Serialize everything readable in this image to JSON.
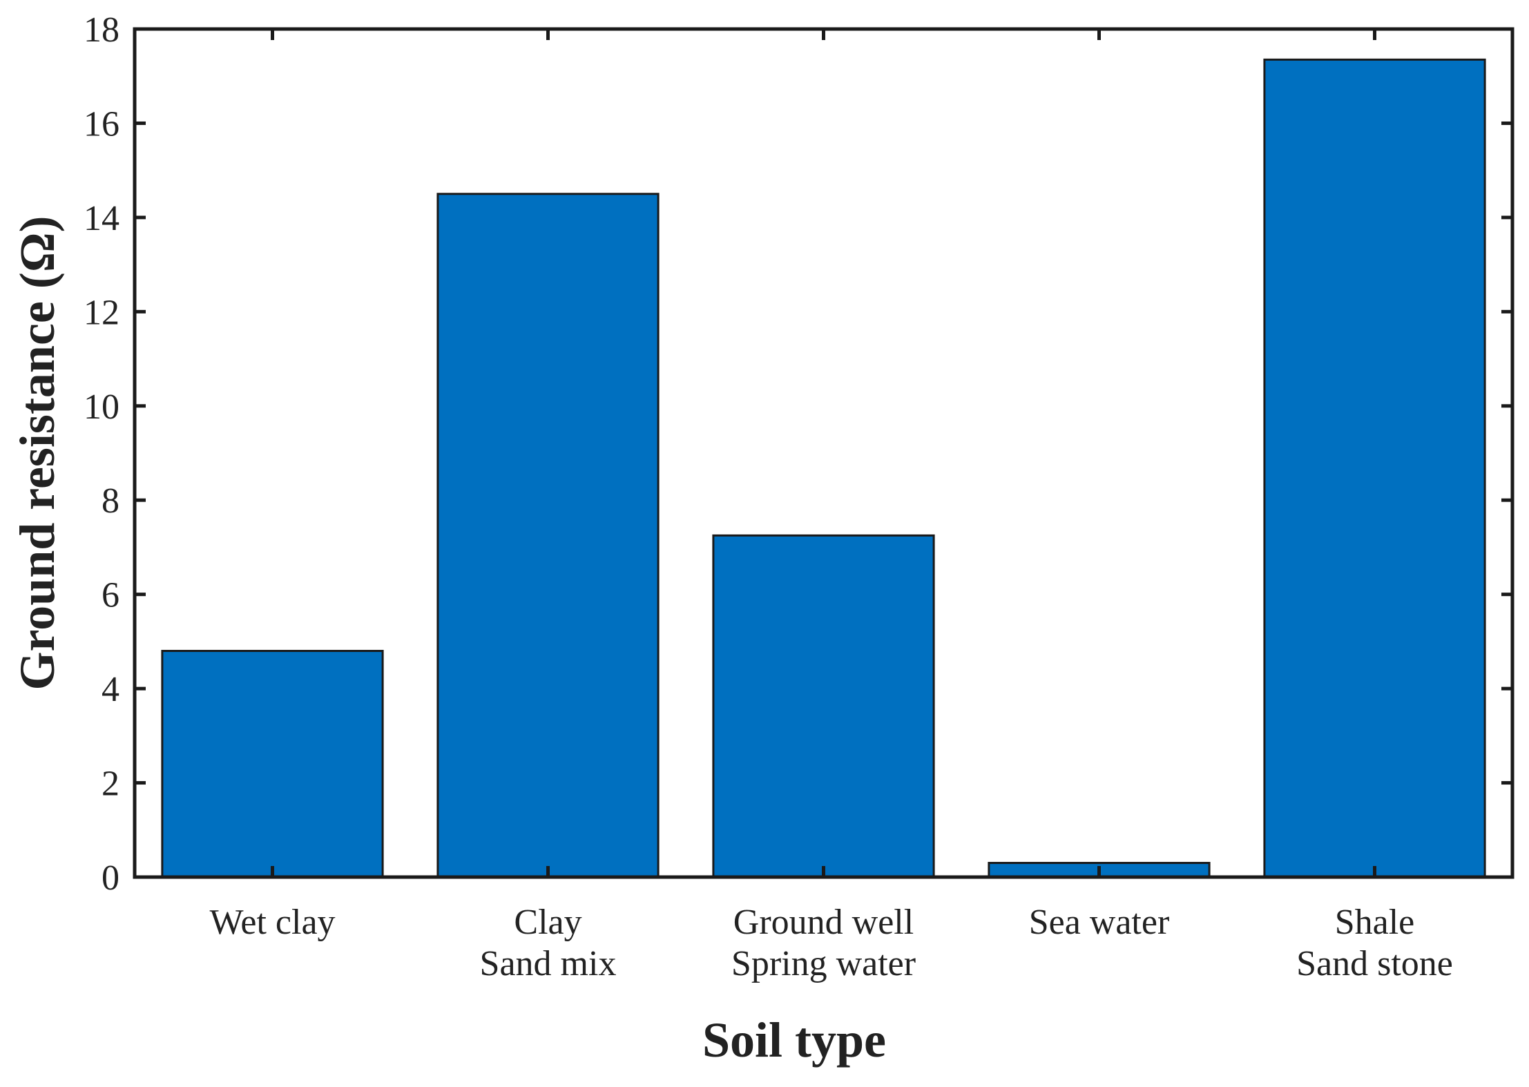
{
  "chart_data": {
    "type": "bar",
    "categories": [
      [
        "Wet clay"
      ],
      [
        "Clay",
        "Sand mix"
      ],
      [
        "Ground well",
        "Spring water"
      ],
      [
        "Sea water"
      ],
      [
        "Shale",
        "Sand stone"
      ]
    ],
    "values": [
      4.8,
      14.5,
      7.25,
      0.3,
      17.35
    ],
    "title": "",
    "xlabel": "Soil type",
    "ylabel": "Ground resistance (Ω)",
    "ylim": [
      0,
      18
    ],
    "yticks": [
      0,
      2,
      4,
      6,
      8,
      10,
      12,
      14,
      16,
      18
    ],
    "bar_color": "#0070c0",
    "bar_edge_color": "#1a1a1a",
    "grid": false,
    "legend": "none"
  }
}
